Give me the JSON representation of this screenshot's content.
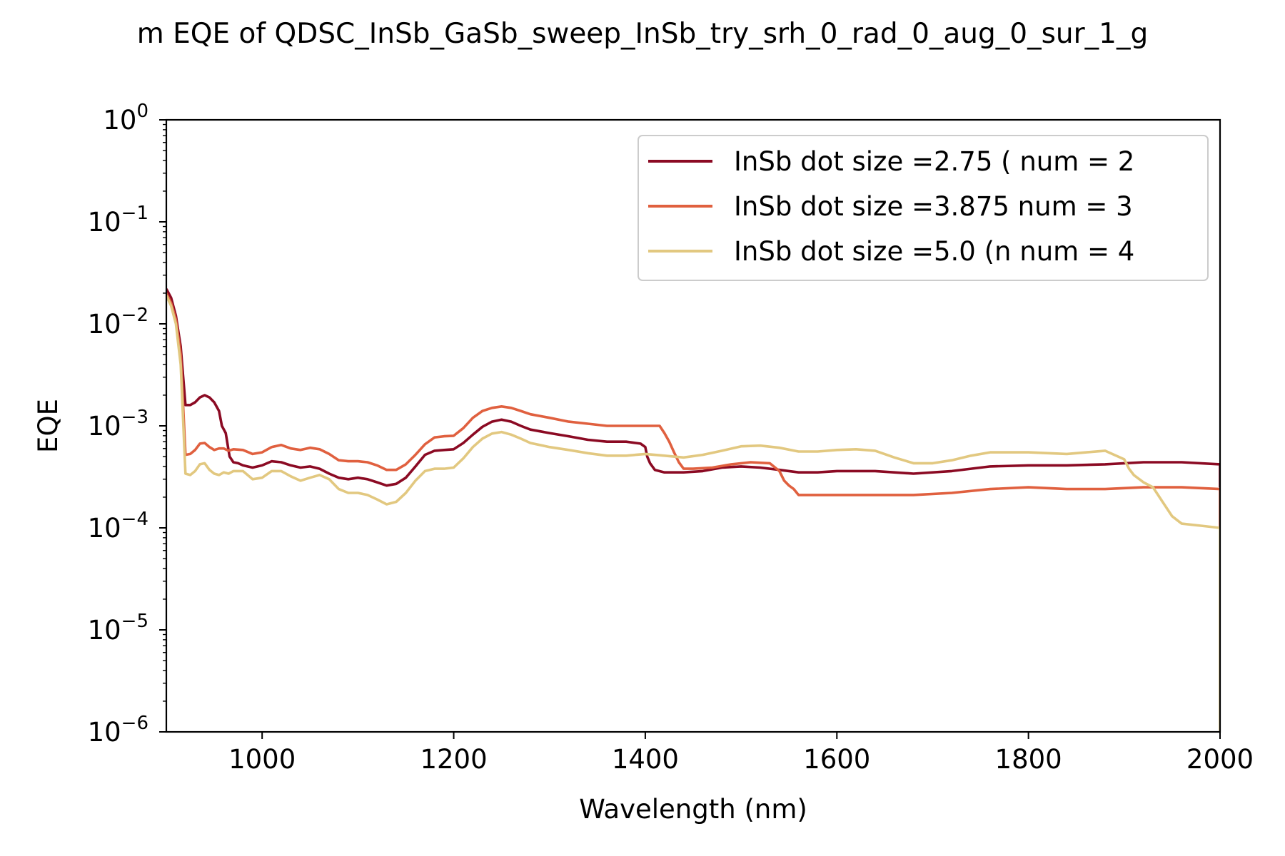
{
  "chart_data": {
    "type": "line",
    "title": "m EQE of QDSC_InSb_GaSb_sweep_InSb_try_srh_0_rad_0_aug_0_sur_1_g",
    "xlabel": "Wavelength (nm)",
    "ylabel": "EQE",
    "xlim": [
      900,
      2000
    ],
    "ylim": [
      1e-06,
      1
    ],
    "y_scale": "log",
    "x_ticks": [
      1000,
      1200,
      1400,
      1600,
      1800,
      2000
    ],
    "x_tick_labels": [
      "1000",
      "1200",
      "1400",
      "1600",
      "1800",
      "2000"
    ],
    "y_ticks": [
      1e-06,
      1e-05,
      0.0001,
      0.001,
      0.01,
      0.1,
      1
    ],
    "y_tick_labels": [
      {
        "base": "10",
        "exp": "−6"
      },
      {
        "base": "10",
        "exp": "−5"
      },
      {
        "base": "10",
        "exp": "−4"
      },
      {
        "base": "10",
        "exp": "−3"
      },
      {
        "base": "10",
        "exp": "−2"
      },
      {
        "base": "10",
        "exp": "−1"
      },
      {
        "base": "10",
        "exp": "0"
      }
    ],
    "grid": false,
    "legend_position": "top-right",
    "series": [
      {
        "name": "InSb dot size =2.75 ( num = 2",
        "color": "#8b0a23",
        "x": [
          900,
          905,
          910,
          915,
          920,
          925,
          930,
          935,
          940,
          945,
          950,
          955,
          958,
          962,
          966,
          970,
          975,
          980,
          990,
          1000,
          1010,
          1020,
          1030,
          1040,
          1050,
          1060,
          1070,
          1080,
          1090,
          1100,
          1110,
          1120,
          1130,
          1140,
          1150,
          1160,
          1170,
          1180,
          1190,
          1200,
          1210,
          1220,
          1230,
          1240,
          1250,
          1260,
          1270,
          1280,
          1300,
          1320,
          1340,
          1360,
          1380,
          1390,
          1395,
          1400,
          1402,
          1405,
          1410,
          1420,
          1440,
          1460,
          1480,
          1500,
          1520,
          1540,
          1560,
          1580,
          1600,
          1640,
          1680,
          1720,
          1760,
          1800,
          1840,
          1880,
          1920,
          1960,
          2000,
          2000
        ],
        "y": [
          0.022,
          0.018,
          0.012,
          0.006,
          0.0016,
          0.0016,
          0.0017,
          0.0019,
          0.002,
          0.0019,
          0.0017,
          0.0014,
          0.001,
          0.00085,
          0.0005,
          0.00044,
          0.00043,
          0.00041,
          0.00039,
          0.00041,
          0.00045,
          0.00044,
          0.00041,
          0.00039,
          0.0004,
          0.00038,
          0.00034,
          0.00031,
          0.0003,
          0.00031,
          0.0003,
          0.00028,
          0.00026,
          0.00027,
          0.00031,
          0.0004,
          0.00052,
          0.00057,
          0.00058,
          0.00059,
          0.00068,
          0.00082,
          0.00098,
          0.0011,
          0.00115,
          0.0011,
          0.001,
          0.00092,
          0.00085,
          0.00079,
          0.00073,
          0.0007,
          0.0007,
          0.00068,
          0.00067,
          0.00062,
          0.0005,
          0.00043,
          0.00037,
          0.00035,
          0.00035,
          0.00036,
          0.00039,
          0.0004,
          0.00039,
          0.00037,
          0.00035,
          0.00035,
          0.00036,
          0.00036,
          0.00034,
          0.00036,
          0.0004,
          0.00041,
          0.00041,
          0.00042,
          0.00044,
          0.00044,
          0.00042,
          0.00025
        ]
      },
      {
        "name": "InSb dot size =3.875  num = 3",
        "color": "#e0603f",
        "x": [
          900,
          905,
          910,
          915,
          920,
          925,
          930,
          935,
          940,
          945,
          950,
          955,
          960,
          965,
          970,
          980,
          990,
          1000,
          1010,
          1020,
          1030,
          1040,
          1050,
          1060,
          1070,
          1080,
          1090,
          1100,
          1110,
          1120,
          1130,
          1140,
          1150,
          1160,
          1170,
          1180,
          1190,
          1200,
          1210,
          1220,
          1230,
          1240,
          1250,
          1260,
          1270,
          1280,
          1300,
          1320,
          1340,
          1360,
          1380,
          1400,
          1410,
          1415,
          1420,
          1425,
          1430,
          1435,
          1440,
          1450,
          1470,
          1490,
          1510,
          1530,
          1540,
          1545,
          1550,
          1555,
          1560,
          1570,
          1600,
          1640,
          1680,
          1720,
          1760,
          1800,
          1840,
          1880,
          1920,
          1960,
          2000,
          2000
        ],
        "y": [
          0.02,
          0.016,
          0.011,
          0.005,
          0.00052,
          0.00053,
          0.00058,
          0.00067,
          0.00068,
          0.00062,
          0.00058,
          0.0006,
          0.0006,
          0.00057,
          0.00059,
          0.00058,
          0.00053,
          0.00055,
          0.00062,
          0.00065,
          0.0006,
          0.00058,
          0.00061,
          0.00059,
          0.00053,
          0.00046,
          0.00045,
          0.00045,
          0.00044,
          0.00041,
          0.00037,
          0.00037,
          0.00042,
          0.00052,
          0.00066,
          0.00077,
          0.00079,
          0.0008,
          0.00095,
          0.0012,
          0.0014,
          0.0015,
          0.00155,
          0.0015,
          0.0014,
          0.0013,
          0.0012,
          0.0011,
          0.00105,
          0.001,
          0.001,
          0.001,
          0.001,
          0.001,
          0.00085,
          0.0007,
          0.00055,
          0.00044,
          0.00038,
          0.00038,
          0.00039,
          0.00042,
          0.00044,
          0.00043,
          0.00036,
          0.00029,
          0.00026,
          0.00024,
          0.00021,
          0.00021,
          0.00021,
          0.00021,
          0.00021,
          0.00022,
          0.00024,
          0.00025,
          0.00024,
          0.00024,
          0.00025,
          0.00025,
          0.00024,
          0.0001
        ]
      },
      {
        "name": "InSb dot size =5.0 (n num = 4",
        "color": "#e2c880",
        "x": [
          900,
          905,
          910,
          915,
          920,
          925,
          930,
          935,
          940,
          945,
          950,
          955,
          960,
          965,
          970,
          980,
          990,
          1000,
          1010,
          1020,
          1030,
          1040,
          1050,
          1060,
          1070,
          1080,
          1090,
          1100,
          1110,
          1120,
          1130,
          1140,
          1150,
          1160,
          1170,
          1180,
          1190,
          1200,
          1210,
          1220,
          1230,
          1240,
          1250,
          1260,
          1270,
          1280,
          1300,
          1320,
          1340,
          1360,
          1380,
          1400,
          1420,
          1440,
          1460,
          1480,
          1500,
          1520,
          1540,
          1560,
          1580,
          1600,
          1620,
          1640,
          1660,
          1680,
          1700,
          1720,
          1740,
          1760,
          1800,
          1840,
          1880,
          1900,
          1905,
          1910,
          1920,
          1930,
          1940,
          1950,
          1960,
          1980,
          2000,
          2000
        ],
        "y": [
          0.019,
          0.015,
          0.01,
          0.004,
          0.00034,
          0.00033,
          0.00036,
          0.00042,
          0.00043,
          0.00037,
          0.00034,
          0.00033,
          0.00035,
          0.00034,
          0.00036,
          0.00036,
          0.0003,
          0.00031,
          0.00036,
          0.00036,
          0.00032,
          0.00029,
          0.00031,
          0.00033,
          0.0003,
          0.00024,
          0.00022,
          0.00022,
          0.00021,
          0.00019,
          0.00017,
          0.00018,
          0.00022,
          0.00029,
          0.00036,
          0.00038,
          0.00038,
          0.00039,
          0.00048,
          0.00062,
          0.00075,
          0.00084,
          0.00087,
          0.00082,
          0.00075,
          0.00068,
          0.00062,
          0.00058,
          0.00054,
          0.00051,
          0.00051,
          0.00053,
          0.00051,
          0.00049,
          0.00052,
          0.00057,
          0.00063,
          0.00064,
          0.00061,
          0.00056,
          0.00056,
          0.00058,
          0.00059,
          0.00057,
          0.00049,
          0.00043,
          0.00043,
          0.00046,
          0.00051,
          0.00055,
          0.00055,
          0.00053,
          0.00057,
          0.00047,
          0.00038,
          0.00033,
          0.00028,
          0.00025,
          0.00018,
          0.00013,
          0.00011,
          0.000105,
          0.0001,
          1e-06
        ]
      }
    ]
  }
}
